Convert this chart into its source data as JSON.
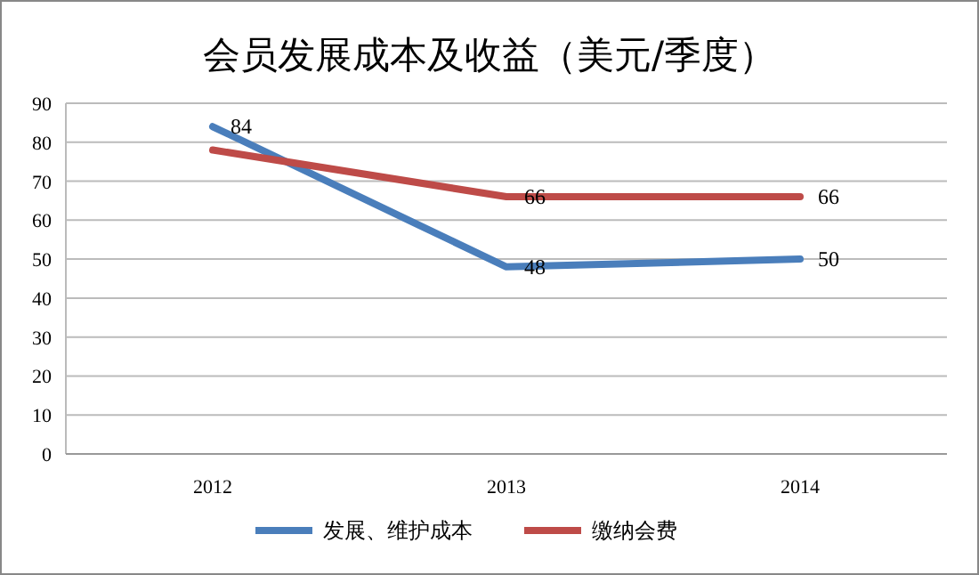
{
  "chart_data": {
    "type": "line",
    "title": "会员发展成本及收益（美元/季度）",
    "categories": [
      "2012",
      "2013",
      "2014"
    ],
    "series": [
      {
        "name": "发展、维护成本",
        "color": "#4a7ebb",
        "values": [
          84,
          48,
          50
        ],
        "value_labels": [
          "84",
          "48",
          "50"
        ]
      },
      {
        "name": "缴纳会费",
        "color": "#be4b48",
        "values": [
          78,
          66,
          66
        ],
        "value_labels": [
          null,
          "66",
          "66"
        ]
      }
    ],
    "ylim": [
      0,
      90
    ],
    "yticks": [
      0,
      10,
      20,
      30,
      40,
      50,
      60,
      70,
      80,
      90
    ],
    "grid": "y",
    "legend": "bottom",
    "marker": "none",
    "line_style": "solid"
  }
}
